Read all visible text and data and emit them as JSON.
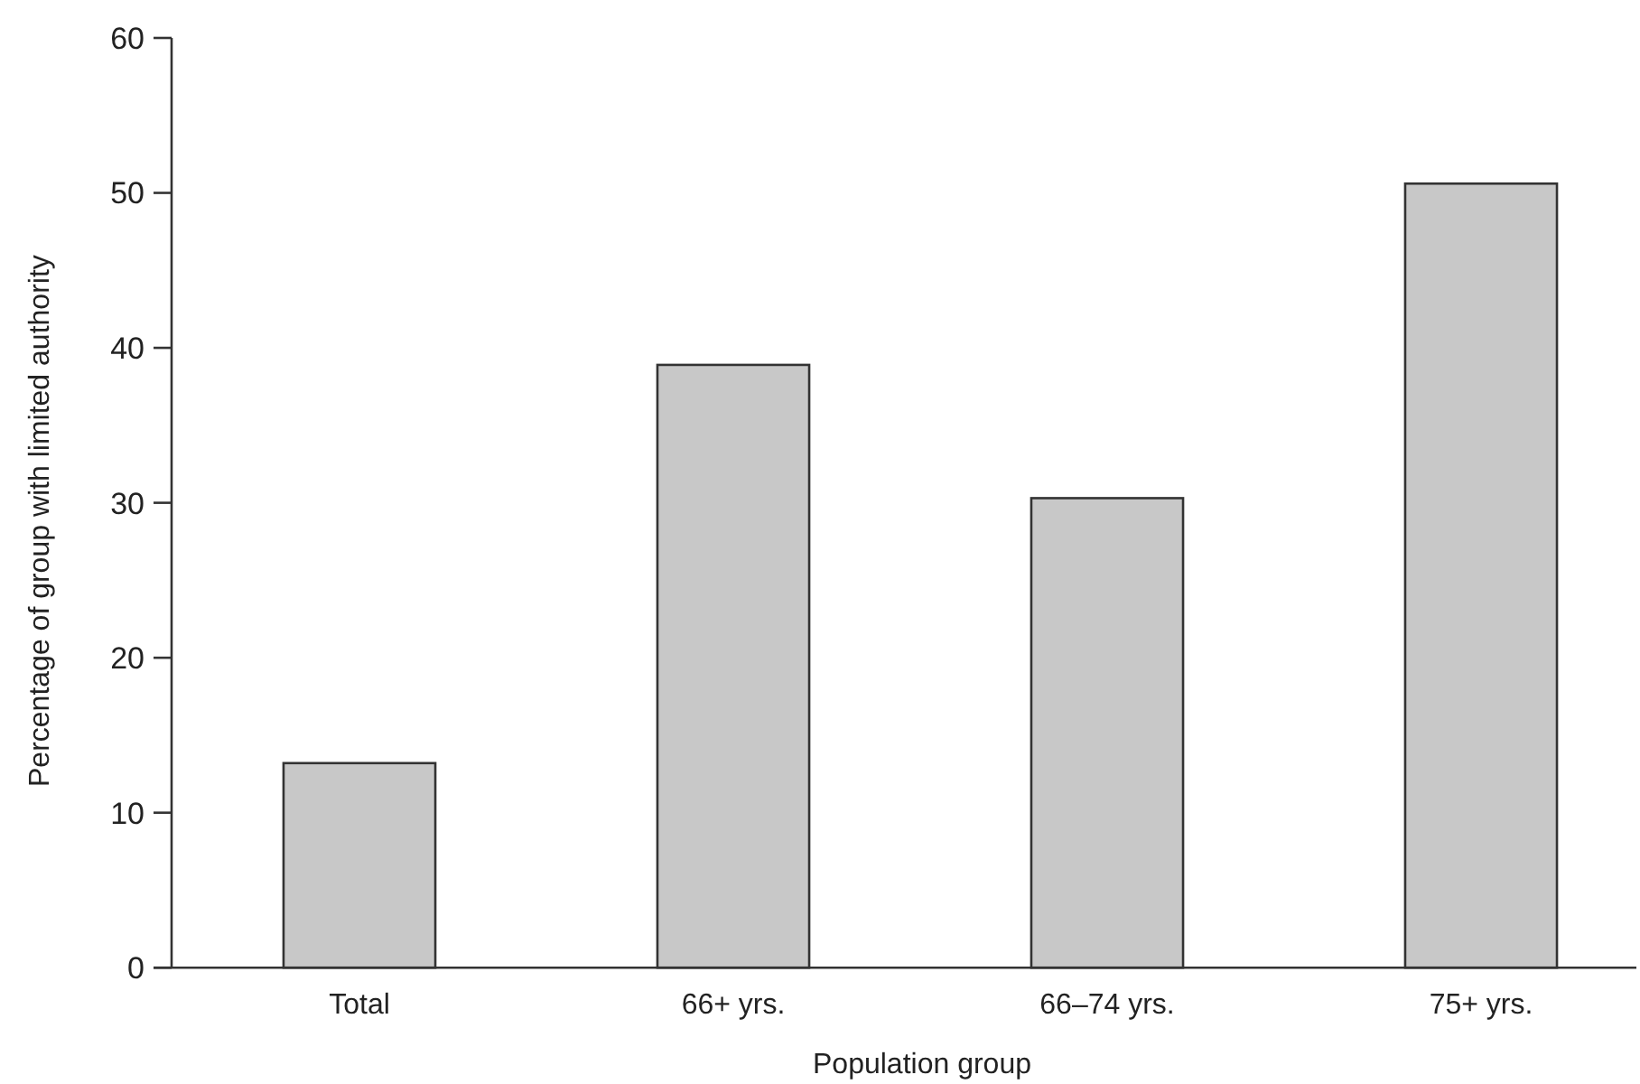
{
  "chart_data": {
    "type": "bar",
    "xlabel": "Population group",
    "ylabel": "Percentage of group with limited authority",
    "categories": [
      "Total",
      "66+ yrs.",
      "66–74 yrs.",
      "75+ yrs."
    ],
    "values": [
      13.2,
      38.9,
      30.3,
      50.6
    ],
    "color": "#c8c8c8",
    "ylim": [
      0,
      60
    ],
    "yticks": [
      0,
      10,
      20,
      30,
      40,
      50,
      60
    ],
    "grid": false
  }
}
